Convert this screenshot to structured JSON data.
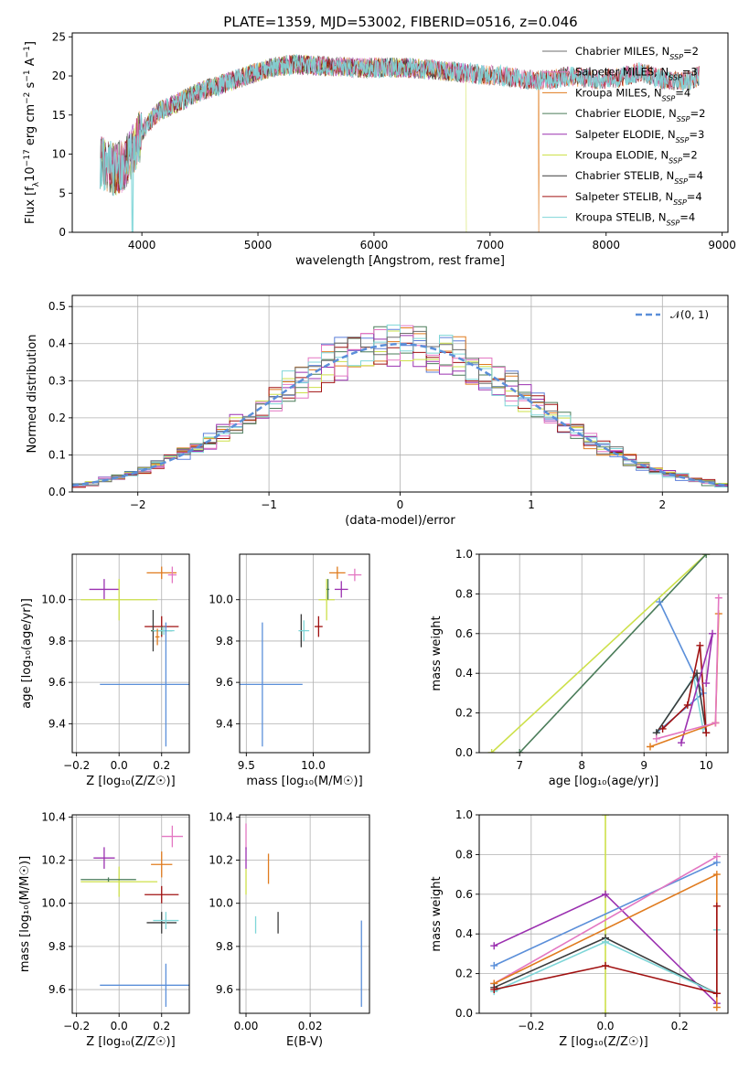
{
  "figure": {
    "title": "PLATE=1359, MJD=53002, FIBERID=0516, z=0.046"
  },
  "colors": {
    "Chabrier MILES": "#6e6e6e",
    "Salpeter MILES": "#e377c2",
    "Kroupa MILES": "#e07b1e",
    "Chabrier ELODIE": "#4a7c59",
    "Salpeter ELODIE": "#9b30b0",
    "Kroupa ELODIE": "#cde04a",
    "Chabrier STELIB": "#3b3b3b",
    "Salpeter STELIB": "#a01010",
    "Kroupa STELIB": "#7fd6d8",
    "norm_curve": "#5b8fd9",
    "hist_blue": "#5b7fd9"
  },
  "chart_data": [
    {
      "id": "spectrum",
      "type": "line",
      "xlabel": "wavelength [Angstrom, rest frame]",
      "ylabel_parts": [
        "Flux [f",
        "λ",
        "10",
        "−17",
        " erg cm",
        "−2",
        " s",
        "−1",
        " A",
        "−1",
        "]"
      ],
      "xlim": [
        3400,
        9050
      ],
      "ylim": [
        0,
        25.5
      ],
      "xticks": [
        4000,
        5000,
        6000,
        7000,
        8000,
        9000
      ],
      "xtick_labels": [
        "4000",
        "5000",
        "6000",
        "7000",
        "8000",
        "9000"
      ],
      "yticks": [
        0,
        5,
        10,
        15,
        20,
        25
      ],
      "ytick_labels": [
        "0",
        "5",
        "10",
        "15",
        "20",
        "25"
      ],
      "legend_position": "upper-right",
      "legend": [
        {
          "name": "Chabrier MILES",
          "nssp": "2"
        },
        {
          "name": "Salpeter MILES",
          "nssp": "3"
        },
        {
          "name": "Kroupa MILES",
          "nssp": "4"
        },
        {
          "name": "Chabrier ELODIE",
          "nssp": "2"
        },
        {
          "name": "Salpeter ELODIE",
          "nssp": "3"
        },
        {
          "name": "Kroupa ELODIE",
          "nssp": "2"
        },
        {
          "name": "Chabrier STELIB",
          "nssp": "4"
        },
        {
          "name": "Salpeter STELIB",
          "nssp": "4"
        },
        {
          "name": "Kroupa STELIB",
          "nssp": "4"
        }
      ],
      "legend_sub": "SSP",
      "continuum": {
        "x": [
          3650,
          3750,
          3850,
          3950,
          4050,
          4150,
          4300,
          4500,
          4700,
          4900,
          5100,
          5300,
          5500,
          5700,
          5900,
          6100,
          6300,
          6500,
          6700,
          6900,
          7100,
          7300,
          7500,
          7700,
          7900,
          8100,
          8300,
          8500,
          8700,
          8800
        ],
        "y": [
          9,
          8,
          8.5,
          11.5,
          14,
          15.5,
          16.5,
          18,
          19,
          20,
          21,
          21.5,
          21.3,
          21.2,
          21,
          21.1,
          21,
          20.8,
          20.5,
          20.2,
          20,
          19.5,
          19.5,
          20,
          19.5,
          19.8,
          20.5,
          19.5,
          19.3,
          20
        ]
      },
      "drops": [
        {
          "series": "Kroupa ELODIE",
          "x": 6800
        },
        {
          "series": "Kroupa MILES",
          "x": 7420
        },
        {
          "series": "Kroupa STELIB",
          "x": 3920
        }
      ]
    },
    {
      "id": "residual-hist",
      "type": "histogram",
      "xlabel": "(data-model)/error",
      "ylabel": "Normed distribution",
      "xlim": [
        -2.5,
        2.5
      ],
      "ylim": [
        0,
        0.53
      ],
      "xticks": [
        -2,
        -1,
        0,
        1,
        2
      ],
      "xtick_labels": [
        "−2",
        "−1",
        "0",
        "1",
        "2"
      ],
      "yticks": [
        0,
        0.1,
        0.2,
        0.3,
        0.4,
        0.5
      ],
      "ytick_labels": [
        "0.0",
        "0.1",
        "0.2",
        "0.3",
        "0.4",
        "0.5"
      ],
      "grid": true,
      "legend_position": "upper-right",
      "reference_label": "𝒩(0, 1)",
      "bin_width": 0.1
    },
    {
      "id": "age-vs-Z",
      "type": "errorbar",
      "xlabel": "Z [log₁₀(Z/Z☉)]",
      "ylabel": "age  [log₁₀(age/yr)]",
      "xlim": [
        -0.22,
        0.33
      ],
      "ylim": [
        9.26,
        10.22
      ],
      "xticks": [
        -0.2,
        0,
        0.2
      ],
      "xtick_labels": [
        "−0.2",
        "0.0",
        "0.2"
      ],
      "yticks": [
        9.4,
        9.6,
        9.8,
        10.0
      ],
      "ytick_labels": [
        "9.4",
        "9.6",
        "9.8",
        "10.0"
      ],
      "grid": true,
      "points": [
        {
          "series": "Salpeter ELODIE",
          "x": -0.07,
          "y": 10.05,
          "xerr": 0.07,
          "yerr": 0.05
        },
        {
          "series": "Kroupa ELODIE",
          "x": 0.0,
          "y": 10.0,
          "xerr": 0.18,
          "yerr": 0.1
        },
        {
          "series": "Kroupa MILES",
          "x": 0.2,
          "y": 10.13,
          "xerr": 0.07,
          "yerr": 0.03
        },
        {
          "series": "Salpeter MILES",
          "x": 0.25,
          "y": 10.12,
          "xerr": 0.02,
          "yerr": 0.04
        },
        {
          "series": "Salpeter STELIB",
          "x": 0.2,
          "y": 9.87,
          "xerr": 0.08,
          "yerr": 0.05
        },
        {
          "series": "Chabrier STELIB",
          "x": 0.16,
          "y": 9.85,
          "xerr": 0.01,
          "yerr": 0.1
        },
        {
          "series": "Chabrier ELODIE",
          "x": 0.2,
          "y": 9.85,
          "xerr": 0.05,
          "yerr": 0.02
        },
        {
          "series": "Kroupa STELIB",
          "x": 0.21,
          "y": 9.85,
          "xerr": 0.05,
          "yerr": 0.02
        },
        {
          "series": "Kroupa MILES",
          "x": 0.18,
          "y": 9.82,
          "xerr": 0.01,
          "yerr": 0.04
        },
        {
          "series": "norm_curve",
          "x": 0.22,
          "y": 9.59,
          "xerr": 0.31,
          "yerr": 0.3
        }
      ]
    },
    {
      "id": "age-vs-mass",
      "type": "errorbar",
      "xlabel": "mass [log₁₀(M/M☉)]",
      "xlim": [
        9.45,
        10.42
      ],
      "ylim": [
        9.26,
        10.22
      ],
      "xticks": [
        9.5,
        10.0
      ],
      "xtick_labels": [
        "9.5",
        "10.0"
      ],
      "yticks": [
        9.4,
        9.6,
        9.8,
        10.0
      ],
      "ytick_labels": [
        "9.4",
        "9.6",
        "9.8",
        "10.0"
      ],
      "grid": true,
      "points": [
        {
          "series": "Salpeter MILES",
          "x": 10.31,
          "y": 10.12,
          "xerr": 0.05,
          "yerr": 0.03
        },
        {
          "series": "Kroupa MILES",
          "x": 10.18,
          "y": 10.13,
          "xerr": 0.06,
          "yerr": 0.03
        },
        {
          "series": "Salpeter ELODIE",
          "x": 10.21,
          "y": 10.05,
          "xerr": 0.05,
          "yerr": 0.04
        },
        {
          "series": "Kroupa ELODIE",
          "x": 10.1,
          "y": 10.0,
          "xerr": 0.06,
          "yerr": 0.1
        },
        {
          "series": "Chabrier ELODIE",
          "x": 10.11,
          "y": 10.05,
          "xerr": 0.01,
          "yerr": 0.05
        },
        {
          "series": "Salpeter STELIB",
          "x": 10.04,
          "y": 9.87,
          "xerr": 0.03,
          "yerr": 0.05
        },
        {
          "series": "Chabrier STELIB",
          "x": 9.91,
          "y": 9.85,
          "xerr": 0.01,
          "yerr": 0.08
        },
        {
          "series": "Kroupa STELIB",
          "x": 9.93,
          "y": 9.85,
          "xerr": 0.04,
          "yerr": 0.05
        },
        {
          "series": "norm_curve",
          "x": 9.62,
          "y": 9.59,
          "xerr": 0.3,
          "yerr": 0.3
        }
      ]
    },
    {
      "id": "massweight-vs-age",
      "type": "line",
      "xlabel": "age  [log₁₀(age/yr)]",
      "ylabel": "mass weight",
      "xlim": [
        6.35,
        10.35
      ],
      "ylim": [
        0,
        1
      ],
      "xticks": [
        7,
        8,
        9,
        10
      ],
      "xtick_labels": [
        "7",
        "8",
        "9",
        "10"
      ],
      "yticks": [
        0,
        0.2,
        0.4,
        0.6,
        0.8,
        1.0
      ],
      "ytick_labels": [
        "0.0",
        "0.2",
        "0.4",
        "0.6",
        "0.8",
        "1.0"
      ],
      "grid": true,
      "lines": [
        {
          "series": "Kroupa ELODIE",
          "x": [
            6.55,
            10.0
          ],
          "y": [
            0.0,
            1.0
          ]
        },
        {
          "series": "Chabrier ELODIE",
          "x": [
            7.0,
            10.0
          ],
          "y": [
            0.0,
            1.0
          ]
        },
        {
          "series": "norm_curve",
          "x": [
            9.25,
            9.95,
            9.2
          ],
          "y": [
            0.76,
            0.3,
            0.1
          ]
        },
        {
          "series": "Kroupa STELIB",
          "x": [
            9.2,
            9.8,
            9.95
          ],
          "y": [
            0.1,
            0.38,
            0.12
          ]
        },
        {
          "series": "Chabrier STELIB",
          "x": [
            9.2,
            9.85,
            10.0
          ],
          "y": [
            0.1,
            0.4,
            0.1
          ]
        },
        {
          "series": "Salpeter STELIB",
          "x": [
            9.3,
            9.7,
            9.9,
            10.0
          ],
          "y": [
            0.12,
            0.24,
            0.54,
            0.1
          ]
        },
        {
          "series": "Salpeter ELODIE",
          "x": [
            9.6,
            10.1,
            10.0
          ],
          "y": [
            0.05,
            0.6,
            0.35
          ]
        },
        {
          "series": "Kroupa MILES",
          "x": [
            9.1,
            10.15,
            10.2,
            10.15
          ],
          "y": [
            0.03,
            0.15,
            0.7,
            0.15
          ]
        },
        {
          "series": "Salpeter MILES",
          "x": [
            9.2,
            10.15,
            10.2
          ],
          "y": [
            0.07,
            0.15,
            0.78
          ]
        }
      ]
    },
    {
      "id": "mass-vs-Z",
      "type": "errorbar",
      "xlabel": "Z [log₁₀(Z/Z☉)]",
      "ylabel": "mass [log₁₀(M/M☉)]",
      "xlim": [
        -0.22,
        0.33
      ],
      "ylim": [
        9.49,
        10.41
      ],
      "xticks": [
        -0.2,
        0,
        0.2
      ],
      "xtick_labels": [
        "−0.2",
        "0.0",
        "0.2"
      ],
      "yticks": [
        9.6,
        9.8,
        10.0,
        10.2,
        10.4
      ],
      "ytick_labels": [
        "9.6",
        "9.8",
        "10.0",
        "10.2",
        "10.4"
      ],
      "grid": true,
      "points": [
        {
          "series": "Salpeter ELODIE",
          "x": -0.07,
          "y": 10.21,
          "xerr": 0.05,
          "yerr": 0.05
        },
        {
          "series": "Kroupa ELODIE",
          "x": 0.0,
          "y": 10.1,
          "xerr": 0.18,
          "yerr": 0.07
        },
        {
          "series": "Chabrier ELODIE",
          "x": -0.05,
          "y": 10.11,
          "xerr": 0.13,
          "yerr": 0.01
        },
        {
          "series": "Salpeter MILES",
          "x": 0.25,
          "y": 10.31,
          "xerr": 0.05,
          "yerr": 0.05
        },
        {
          "series": "Kroupa MILES",
          "x": 0.2,
          "y": 10.18,
          "xerr": 0.05,
          "yerr": 0.06
        },
        {
          "series": "Salpeter STELIB",
          "x": 0.2,
          "y": 10.04,
          "xerr": 0.08,
          "yerr": 0.04
        },
        {
          "series": "Chabrier STELIB",
          "x": 0.2,
          "y": 9.91,
          "xerr": 0.07,
          "yerr": 0.05
        },
        {
          "series": "Kroupa STELIB",
          "x": 0.22,
          "y": 9.92,
          "xerr": 0.06,
          "yerr": 0.04
        },
        {
          "series": "norm_curve",
          "x": 0.22,
          "y": 9.62,
          "xerr": 0.31,
          "yerr": 0.1
        }
      ]
    },
    {
      "id": "mass-vs-ebv",
      "type": "errorbar",
      "xlabel": "E(B-V)",
      "xlim": [
        -0.002,
        0.0385
      ],
      "ylim": [
        9.49,
        10.41
      ],
      "xticks": [
        0,
        0.02
      ],
      "xtick_labels": [
        "0.00",
        "0.02"
      ],
      "yticks": [
        9.6,
        9.8,
        10.0,
        10.2,
        10.4
      ],
      "ytick_labels": [
        "9.6",
        "9.8",
        "10.0",
        "10.2",
        "10.4"
      ],
      "grid": true,
      "points": [
        {
          "series": "Salpeter MILES",
          "x": 0.0,
          "y": 10.31,
          "xerr": 0,
          "yerr": 0.06
        },
        {
          "series": "Salpeter ELODIE",
          "x": 0.0,
          "y": 10.21,
          "xerr": 0,
          "yerr": 0.05
        },
        {
          "series": "Kroupa ELODIE",
          "x": 0.0,
          "y": 10.1,
          "xerr": 0,
          "yerr": 0.06
        },
        {
          "series": "Kroupa MILES",
          "x": 0.007,
          "y": 10.16,
          "xerr": 0,
          "yerr": 0.07
        },
        {
          "series": "Kroupa STELIB",
          "x": 0.003,
          "y": 9.9,
          "xerr": 0,
          "yerr": 0.04
        },
        {
          "series": "Chabrier STELIB",
          "x": 0.01,
          "y": 9.91,
          "xerr": 0,
          "yerr": 0.05
        },
        {
          "series": "norm_curve",
          "x": 0.036,
          "y": 9.72,
          "xerr": 0,
          "yerr": 0.2
        }
      ]
    },
    {
      "id": "massweight-vs-Z",
      "type": "line",
      "xlabel": "Z [log₁₀(Z/Z☉)]",
      "ylabel": "mass weight",
      "xlim": [
        -0.34,
        0.33
      ],
      "ylim": [
        0,
        1
      ],
      "xticks": [
        -0.2,
        0,
        0.2
      ],
      "xtick_labels": [
        "−0.2",
        "0.0",
        "0.2"
      ],
      "yticks": [
        0,
        0.2,
        0.4,
        0.6,
        0.8,
        1.0
      ],
      "ytick_labels": [
        "0.0",
        "0.2",
        "0.4",
        "0.6",
        "0.8",
        "1.0"
      ],
      "grid": true,
      "lines": [
        {
          "series": "Kroupa ELODIE",
          "x": [
            0.0,
            0.0
          ],
          "y": [
            0.0,
            1.0
          ]
        },
        {
          "series": "Salpeter ELODIE",
          "x": [
            -0.3,
            0.0,
            0.3
          ],
          "y": [
            0.34,
            0.6,
            0.05
          ]
        },
        {
          "series": "norm_curve",
          "x": [
            -0.3,
            0.3
          ],
          "y": [
            0.24,
            0.76
          ]
        },
        {
          "series": "Salpeter MILES",
          "x": [
            -0.3,
            0.3
          ],
          "y": [
            0.15,
            0.79
          ]
        },
        {
          "series": "Kroupa MILES",
          "x": [
            -0.3,
            0.3,
            0.3
          ],
          "y": [
            0.15,
            0.7,
            0.03
          ]
        },
        {
          "series": "Chabrier STELIB",
          "x": [
            -0.3,
            0.0,
            0.3
          ],
          "y": [
            0.13,
            0.38,
            0.1
          ]
        },
        {
          "series": "Kroupa STELIB",
          "x": [
            -0.3,
            0.0,
            0.3,
            0.3
          ],
          "y": [
            0.11,
            0.36,
            0.1,
            0.42
          ]
        },
        {
          "series": "Salpeter STELIB",
          "x": [
            -0.3,
            0.0,
            0.3
          ],
          "y": [
            0.12,
            0.24,
            0.1
          ]
        },
        {
          "series": "Salpeter STELIB",
          "x": [
            0.3,
            0.3
          ],
          "y": [
            0.1,
            0.54
          ]
        }
      ]
    }
  ]
}
